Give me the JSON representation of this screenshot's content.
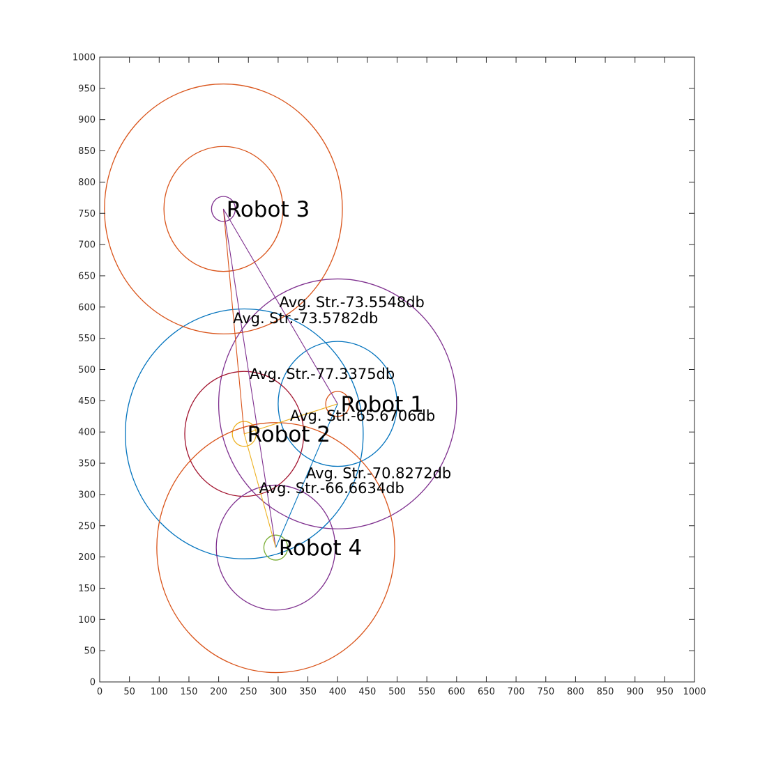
{
  "chart_data": {
    "type": "scatter",
    "title": "",
    "xlabel": "",
    "ylabel": "",
    "xlim": [
      0,
      1000
    ],
    "ylim": [
      0,
      1000
    ],
    "grid": false,
    "x_ticks": [
      0,
      50,
      100,
      150,
      200,
      250,
      300,
      350,
      400,
      450,
      500,
      550,
      600,
      650,
      700,
      750,
      800,
      850,
      900,
      950,
      1000
    ],
    "y_ticks": [
      0,
      50,
      100,
      150,
      200,
      250,
      300,
      350,
      400,
      450,
      500,
      550,
      600,
      650,
      700,
      750,
      800,
      850,
      900,
      950,
      1000
    ],
    "robots": [
      {
        "id": 1,
        "label": "Robot 1",
        "x": 400,
        "y": 445,
        "color": "#7e2f8e",
        "label_offset": [
          5,
          0
        ],
        "rings": [
          {
            "r": 20,
            "color": "#d95319"
          },
          {
            "r": 100,
            "color": "#0072bd"
          },
          {
            "r": 200,
            "color": "#7e2f8e"
          }
        ]
      },
      {
        "id": 2,
        "label": "Robot 2",
        "x": 243,
        "y": 397,
        "color": "#edb120",
        "label_offset": [
          5,
          0
        ],
        "rings": [
          {
            "r": 20,
            "color": "#edb120"
          },
          {
            "r": 100,
            "color": "#a2142f"
          },
          {
            "r": 200,
            "color": "#0072bd"
          }
        ]
      },
      {
        "id": 3,
        "label": "Robot 3",
        "x": 208,
        "y": 757,
        "color": "#7e2f8e",
        "label_offset": [
          5,
          0
        ],
        "rings": [
          {
            "r": 20,
            "color": "#7e2f8e"
          },
          {
            "r": 100,
            "color": "#d95319"
          },
          {
            "r": 200,
            "color": "#d95319"
          }
        ]
      },
      {
        "id": 4,
        "label": "Robot 4",
        "x": 296,
        "y": 215,
        "color": "#77ac30",
        "label_offset": [
          5,
          0
        ],
        "rings": [
          {
            "r": 20,
            "color": "#77ac30"
          },
          {
            "r": 100,
            "color": "#7e2f8e"
          },
          {
            "r": 200,
            "color": "#d95319"
          }
        ]
      }
    ],
    "links": [
      {
        "from": 3,
        "to": 1,
        "color": "#7e2f8e",
        "label": "Avg. Str.-73.5548db",
        "label_x": 302,
        "label_y": 600
      },
      {
        "from": 3,
        "to": 2,
        "color": "#d95319",
        "label": "Avg. Str.-73.5782db",
        "label_x": 224,
        "label_y": 574
      },
      {
        "from": 2,
        "to": 1,
        "color": "#edb120",
        "label": "Avg. Str.-77.3375db",
        "label_x": 252,
        "label_y": 485
      },
      {
        "from": 1,
        "to": 4,
        "color": "#0072bd",
        "label": "Avg. Str.-65.6706db",
        "label_x": 320,
        "label_y": 418
      },
      {
        "from": 3,
        "to": 4,
        "color": "#7e2f8e",
        "label": "Avg. Str.-70.8272db",
        "label_x": 347,
        "label_y": 326
      },
      {
        "from": 2,
        "to": 4,
        "color": "#edb120",
        "label": "Avg. Str.-66.6634db",
        "label_x": 268,
        "label_y": 302
      }
    ]
  }
}
